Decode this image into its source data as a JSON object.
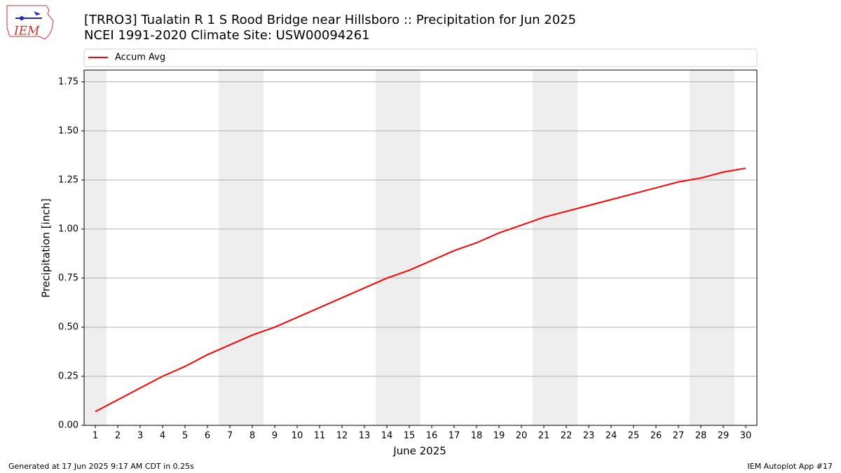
{
  "logo": "IEM",
  "footer": {
    "left": "Generated at 17 Jun 2025 9:17 AM CDT in 0.25s",
    "right": "IEM Autoplot App #17"
  },
  "chart_data": {
    "type": "line",
    "title": "[TRRO3] Tualatin R 1 S Rood Bridge near Hillsboro :: Precipitation for Jun 2025",
    "subtitle": "NCEI 1991-2020 Climate Site: USW00094261",
    "x_label": "June 2025",
    "y_label": "Precipitation [inch]",
    "x": [
      1,
      2,
      3,
      4,
      5,
      6,
      7,
      8,
      9,
      10,
      11,
      12,
      13,
      14,
      15,
      16,
      17,
      18,
      19,
      20,
      21,
      22,
      23,
      24,
      25,
      26,
      27,
      28,
      29,
      30
    ],
    "series": [
      {
        "name": "Accum Avg",
        "color": "#ff0000",
        "values": [
          0.07,
          0.13,
          0.19,
          0.25,
          0.3,
          0.36,
          0.41,
          0.46,
          0.5,
          0.55,
          0.6,
          0.65,
          0.7,
          0.75,
          0.79,
          0.84,
          0.89,
          0.93,
          0.98,
          1.02,
          1.06,
          1.09,
          1.12,
          1.15,
          1.18,
          1.21,
          1.24,
          1.26,
          1.29,
          1.31
        ]
      }
    ],
    "xlim": [
      0.5,
      30.5
    ],
    "xticks": [
      1,
      2,
      3,
      4,
      5,
      6,
      7,
      8,
      9,
      10,
      11,
      12,
      13,
      14,
      15,
      16,
      17,
      18,
      19,
      20,
      21,
      22,
      23,
      24,
      25,
      26,
      27,
      28,
      29,
      30
    ],
    "ylim": [
      0,
      1.81
    ],
    "yticks": [
      {
        "value": 0,
        "label": "0.00"
      },
      {
        "value": 0.25,
        "label": "0.25"
      },
      {
        "value": 0.5,
        "label": "0.50"
      },
      {
        "value": 0.75,
        "label": "0.75"
      },
      {
        "value": 1,
        "label": "1.00"
      },
      {
        "value": 1.25,
        "label": "1.25"
      },
      {
        "value": 1.5,
        "label": "1.50"
      },
      {
        "value": 1.75,
        "label": "1.75"
      }
    ],
    "shaded_days": [
      1,
      7,
      8,
      14,
      15,
      21,
      22,
      28,
      29
    ],
    "shade_color": "#eeeeee",
    "grid": true,
    "legend": "top"
  }
}
